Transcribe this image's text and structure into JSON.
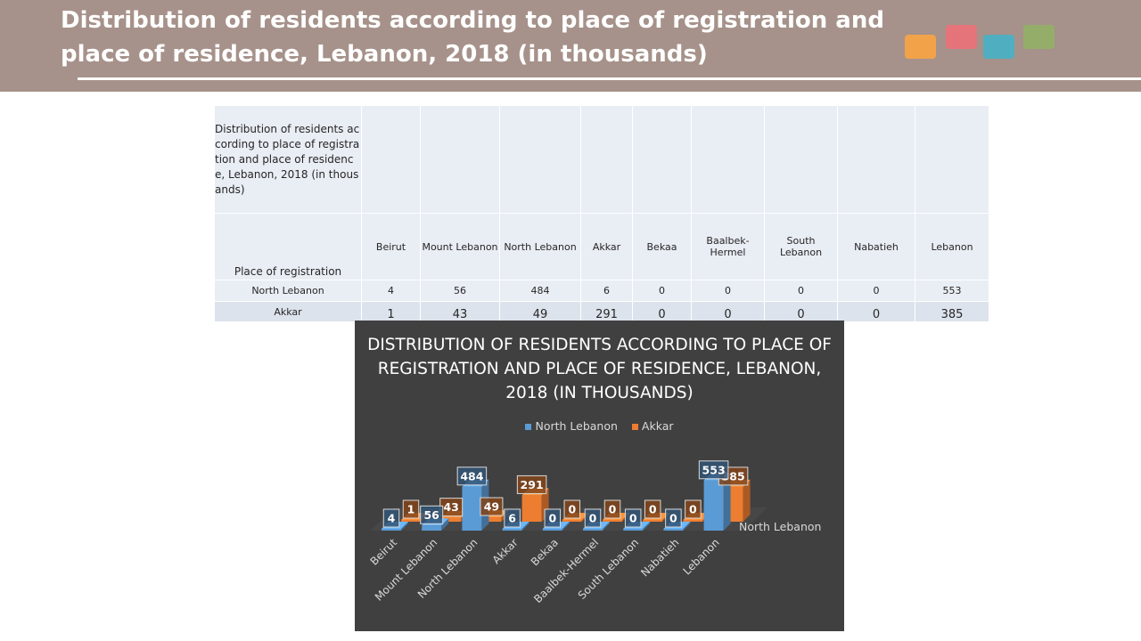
{
  "header": {
    "title": "Distribution of residents according to place of registration and place of residence, Lebanon, 2018 (in thousands)"
  },
  "table": {
    "title": "Distribution of residents according to place of registration and place of residence, Lebanon, 2018 (in thousands)",
    "row_header_label": "Place of registration",
    "columns": [
      "Beirut",
      "Mount Lebanon",
      "North Lebanon",
      "Akkar",
      "Bekaa",
      "Baalbek-Hermel",
      "South Lebanon",
      "Nabatieh",
      "Lebanon"
    ],
    "rows": [
      {
        "label": "North Lebanon",
        "values": [
          "4",
          "56",
          "484",
          "6",
          "0",
          "0",
          "0",
          "0",
          "553"
        ]
      },
      {
        "label": "Akkar",
        "values": [
          "1",
          "43",
          "49",
          "291",
          "0",
          "0",
          "0",
          "0",
          "385"
        ]
      }
    ]
  },
  "chart_data": {
    "type": "bar",
    "title": "DISTRIBUTION OF RESIDENTS ACCORDING TO PLACE OF REGISTRATION AND PLACE OF RESIDENCE, LEBANON, 2018 (IN THOUSANDS)",
    "categories": [
      "Beirut",
      "Mount Lebanon",
      "North Lebanon",
      "Akkar",
      "Bekaa",
      "Baalbek-Hermel",
      "South Lebanon",
      "Nabatieh",
      "Lebanon"
    ],
    "series": [
      {
        "name": "North Lebanon",
        "color": "#5b9bd5",
        "values": [
          4,
          56,
          484,
          6,
          0,
          0,
          0,
          0,
          553
        ]
      },
      {
        "name": "Akkar",
        "color": "#ed7d31",
        "values": [
          1,
          43,
          49,
          291,
          0,
          0,
          0,
          0,
          385
        ]
      }
    ],
    "depth_axis_label": "North Lebanon",
    "legend_position": "top",
    "grid": false,
    "ylim": [
      0,
      600
    ],
    "background": "#404040"
  }
}
